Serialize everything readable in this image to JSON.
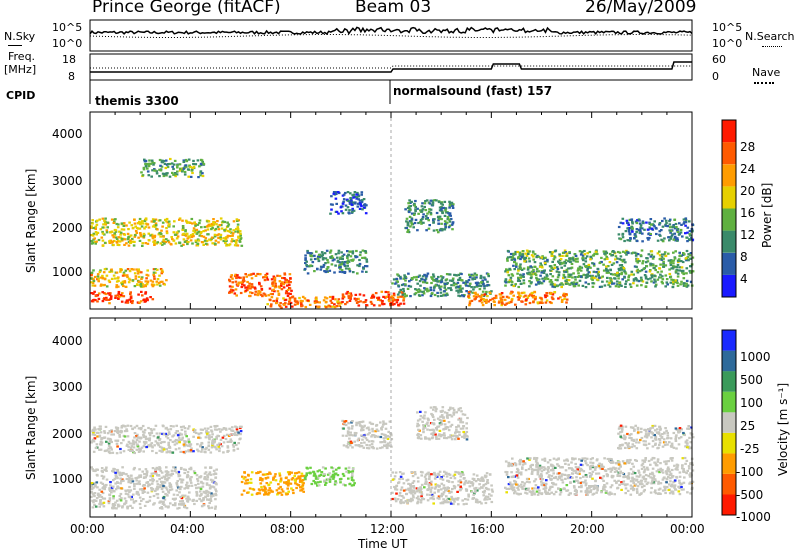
{
  "header": {
    "station": "Prince George (fitACF)",
    "beam": "Beam 03",
    "date": "26/May/2009"
  },
  "left_labels": {
    "nsky": "N.Sky",
    "freq": "Freq.",
    "mhz": "[MHz]",
    "cpid": "CPID"
  },
  "right_labels": {
    "nsearch": "N.Search",
    "nave": "Nave"
  },
  "noise_axis": {
    "top": "10^5",
    "bottom": "10^0",
    "right_top": "10^5",
    "right_bottom": "10^0"
  },
  "freq_axis": {
    "left_ticks": [
      "18",
      "8"
    ],
    "right_ticks": [
      "60",
      "0"
    ]
  },
  "cpid": {
    "first": "themis 3300",
    "second": "normalsound (fast) 157"
  },
  "x_axis": {
    "label": "Time UT",
    "ticks": [
      "00:00",
      "04:00",
      "08:00",
      "12:00",
      "16:00",
      "20:00",
      "00:00"
    ]
  },
  "y_axis": {
    "label": "Slant Range [km]",
    "ticks": [
      "1000",
      "2000",
      "3000",
      "4000"
    ]
  },
  "power_scale": {
    "label": "Power [dB]",
    "ticks": [
      "4",
      "8",
      "12",
      "16",
      "20",
      "24",
      "28"
    ],
    "colors": [
      "#1a1aff",
      "#2a5ca8",
      "#3a8a6a",
      "#5fb040",
      "#e6d000",
      "#ff9c00",
      "#ff5a00",
      "#ff1a00"
    ]
  },
  "velocity_scale": {
    "label": "Velocity [m s⁻¹]",
    "ticks": [
      "1000",
      "500",
      "100",
      "25",
      "-25",
      "-100",
      "-500",
      "-1000"
    ],
    "colors": [
      "#1a2aff",
      "#2e6a9a",
      "#3a9a5a",
      "#6ad040",
      "#c8c8c0",
      "#e8e000",
      "#ff9c00",
      "#ff5a00",
      "#ff1a00"
    ]
  },
  "chart_data": [
    {
      "type": "heatmap",
      "title": "Power",
      "xlabel": "Time UT",
      "ylabel": "Slant Range [km]",
      "xlim": [
        0,
        24
      ],
      "ylim": [
        200,
        4500
      ],
      "colorbar": {
        "label": "Power [dB]",
        "range": [
          0,
          32
        ]
      },
      "regions": [
        {
          "t": [
            0.0,
            2.5
          ],
          "r": [
            350,
            600
          ],
          "v": 28
        },
        {
          "t": [
            0.0,
            3.0
          ],
          "r": [
            700,
            1100
          ],
          "v": 20
        },
        {
          "t": [
            0.0,
            6.0
          ],
          "r": [
            1600,
            2200
          ],
          "v": 18
        },
        {
          "t": [
            2.0,
            4.5
          ],
          "r": [
            3100,
            3500
          ],
          "v": 12
        },
        {
          "t": [
            5.5,
            8.0
          ],
          "r": [
            500,
            1000
          ],
          "v": 26
        },
        {
          "t": [
            7.0,
            10.0
          ],
          "r": [
            250,
            500
          ],
          "v": 24
        },
        {
          "t": [
            8.5,
            11.0
          ],
          "r": [
            1000,
            1500
          ],
          "v": 10
        },
        {
          "t": [
            9.5,
            11.0
          ],
          "r": [
            2300,
            2800
          ],
          "v": 6
        },
        {
          "t": [
            10.0,
            12.5
          ],
          "r": [
            300,
            600
          ],
          "v": 28
        },
        {
          "t": [
            12.0,
            16.0
          ],
          "r": [
            500,
            1000
          ],
          "v": 10
        },
        {
          "t": [
            12.5,
            14.5
          ],
          "r": [
            1900,
            2600
          ],
          "v": 10
        },
        {
          "t": [
            15.0,
            19.0
          ],
          "r": [
            300,
            600
          ],
          "v": 24
        },
        {
          "t": [
            16.5,
            24.0
          ],
          "r": [
            700,
            1500
          ],
          "v": 12
        },
        {
          "t": [
            21.0,
            24.0
          ],
          "r": [
            1700,
            2200
          ],
          "v": 8
        }
      ]
    },
    {
      "type": "heatmap",
      "title": "Velocity",
      "xlabel": "Time UT",
      "ylabel": "Slant Range [km]",
      "xlim": [
        0,
        24
      ],
      "ylim": [
        200,
        4500
      ],
      "colorbar": {
        "label": "Velocity [m s⁻¹]",
        "range": [
          -1000,
          1000
        ]
      },
      "regions": [
        {
          "t": [
            0.0,
            6.0
          ],
          "r": [
            1600,
            2200
          ],
          "v": 0
        },
        {
          "t": [
            0.0,
            5.0
          ],
          "r": [
            400,
            1300
          ],
          "v": 0
        },
        {
          "t": [
            6.0,
            8.5
          ],
          "r": [
            700,
            1200
          ],
          "v": -100
        },
        {
          "t": [
            8.5,
            10.5
          ],
          "r": [
            900,
            1300
          ],
          "v": 100
        },
        {
          "t": [
            10.0,
            12.0
          ],
          "r": [
            1700,
            2300
          ],
          "v": 0
        },
        {
          "t": [
            12.0,
            16.0
          ],
          "r": [
            500,
            1200
          ],
          "v": 0
        },
        {
          "t": [
            13.0,
            15.0
          ],
          "r": [
            1900,
            2600
          ],
          "v": 0
        },
        {
          "t": [
            16.5,
            24.0
          ],
          "r": [
            700,
            1500
          ],
          "v": 0
        },
        {
          "t": [
            21.0,
            24.0
          ],
          "r": [
            1700,
            2200
          ],
          "v": 0
        }
      ]
    }
  ]
}
